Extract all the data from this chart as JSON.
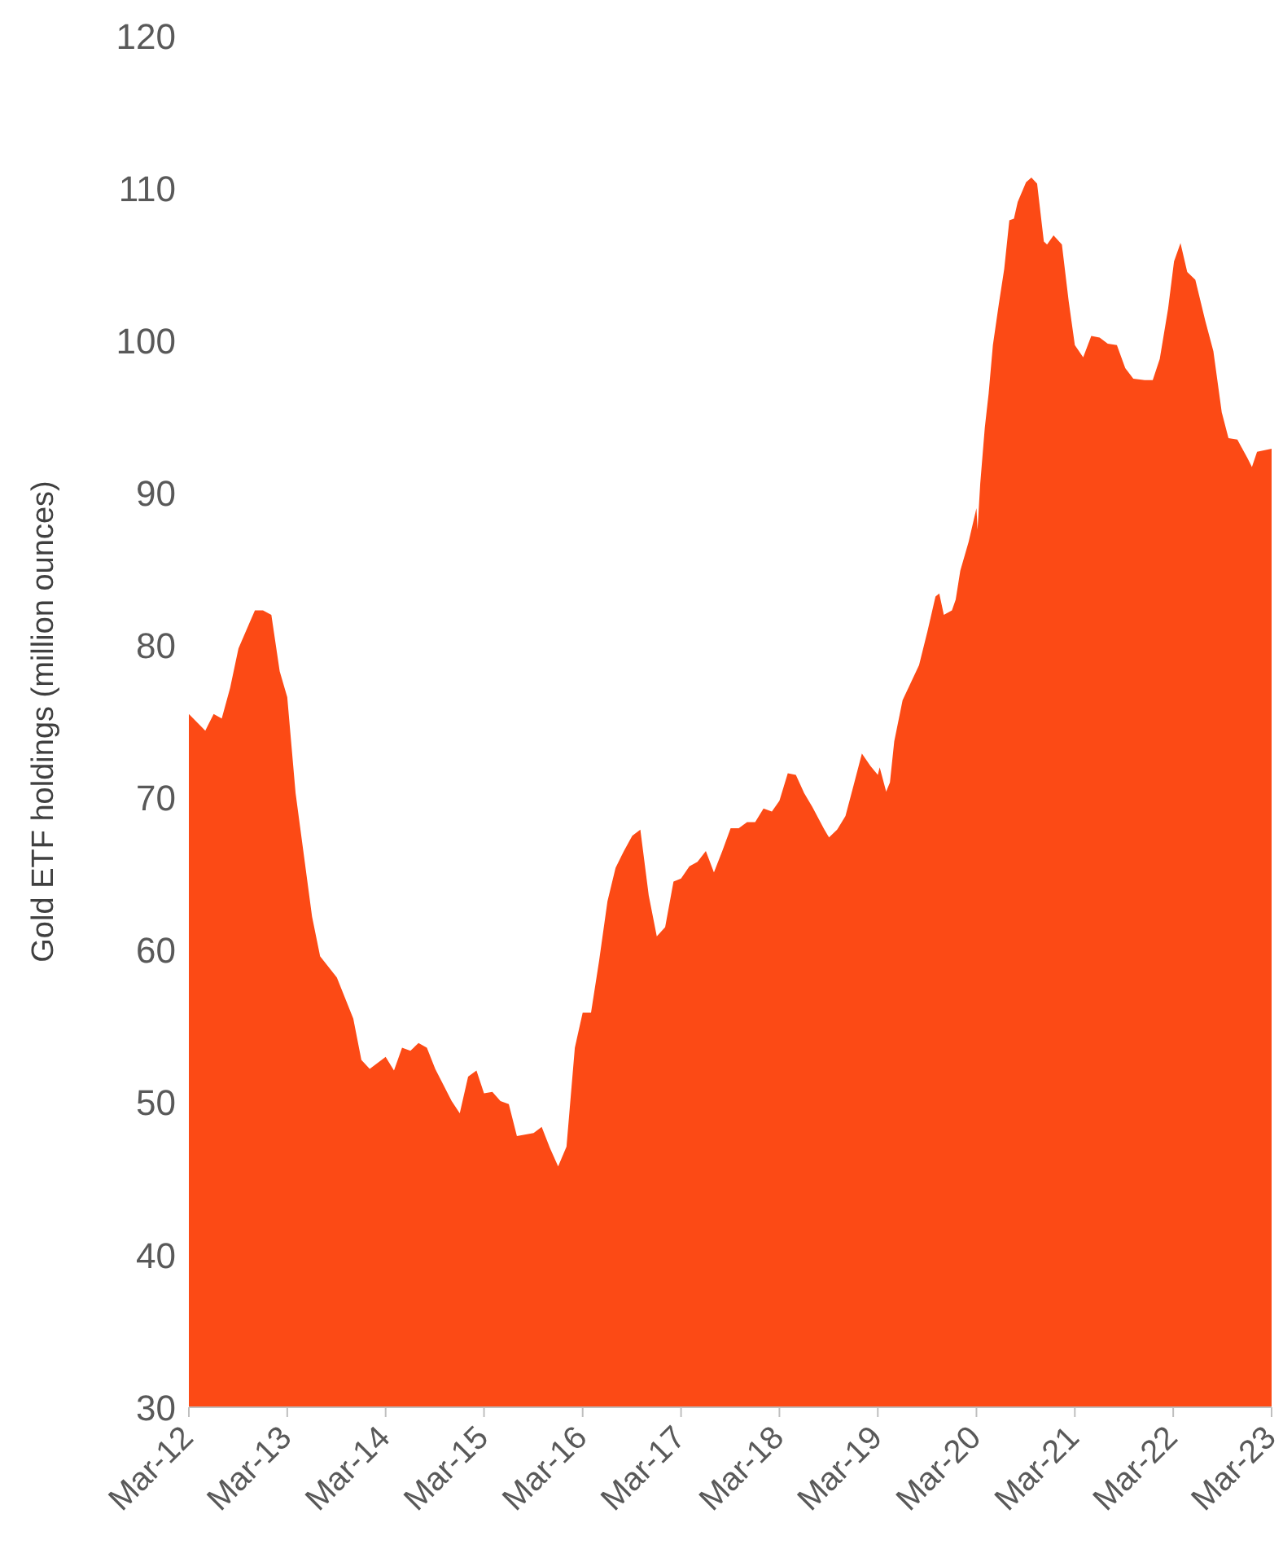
{
  "chart_data": {
    "type": "area",
    "ylabel": "Gold ETF holdings (million ounces)",
    "x": [
      "2012-03-01",
      "2012-05-01",
      "2012-06-01",
      "2012-07-01",
      "2012-08-01",
      "2012-09-01",
      "2012-11-01",
      "2012-12-01",
      "2013-01-01",
      "2013-02-01",
      "2013-03-01",
      "2013-04-01",
      "2013-06-01",
      "2013-07-01",
      "2013-09-01",
      "2013-11-01",
      "2013-12-01",
      "2014-01-01",
      "2014-03-01",
      "2014-04-01",
      "2014-05-01",
      "2014-06-01",
      "2014-07-01",
      "2014-08-01",
      "2014-09-01",
      "2014-11-01",
      "2014-12-01",
      "2015-01-01",
      "2015-02-01",
      "2015-03-01",
      "2015-04-01",
      "2015-05-01",
      "2015-06-01",
      "2015-07-01",
      "2015-09-01",
      "2015-10-01",
      "2015-11-01",
      "2015-12-01",
      "2016-01-01",
      "2016-02-01",
      "2016-03-01",
      "2016-04-01",
      "2016-05-01",
      "2016-06-01",
      "2016-07-01",
      "2016-08-01",
      "2016-09-01",
      "2016-10-01",
      "2016-11-01",
      "2016-12-01",
      "2017-01-01",
      "2017-02-01",
      "2017-03-01",
      "2017-04-01",
      "2017-05-01",
      "2017-06-01",
      "2017-07-01",
      "2017-08-01",
      "2017-09-01",
      "2017-10-01",
      "2017-11-01",
      "2017-12-01",
      "2018-01-01",
      "2018-02-01",
      "2018-03-01",
      "2018-04-01",
      "2018-05-01",
      "2018-06-01",
      "2018-07-01",
      "2018-08-15",
      "2018-09-01",
      "2018-10-01",
      "2018-11-01",
      "2018-12-01",
      "2019-01-01",
      "2019-02-01",
      "2019-03-01",
      "2019-03-08",
      "2019-04-01",
      "2019-04-15",
      "2019-05-01",
      "2019-06-01",
      "2019-08-01",
      "2019-09-01",
      "2019-10-01",
      "2019-10-15",
      "2019-11-01",
      "2019-12-01",
      "2019-12-15",
      "2020-01-01",
      "2020-02-01",
      "2020-03-01",
      "2020-03-05",
      "2020-03-15",
      "2020-04-01",
      "2020-04-15",
      "2020-05-01",
      "2020-05-23",
      "2020-06-12",
      "2020-07-01",
      "2020-07-18",
      "2020-08-01",
      "2020-09-01",
      "2020-09-21",
      "2020-10-12",
      "2020-11-06",
      "2020-11-18",
      "2020-12-12",
      "2021-01-12",
      "2021-02-06",
      "2021-03-01",
      "2021-04-01",
      "2021-05-01",
      "2021-06-01",
      "2021-07-01",
      "2021-08-04",
      "2021-09-04",
      "2021-10-04",
      "2021-11-15",
      "2021-12-15",
      "2022-01-10",
      "2022-02-10",
      "2022-03-04",
      "2022-03-28",
      "2022-04-22",
      "2022-05-22",
      "2022-06-28",
      "2022-07-28",
      "2022-08-28",
      "2022-09-22",
      "2022-10-25",
      "2022-12-01",
      "2022-12-18",
      "2023-01-06",
      "2023-03-01"
    ],
    "series": [
      {
        "color": "#fc4a15",
        "values": [
          75.5,
          74.4,
          75.5,
          75.2,
          77.2,
          79.8,
          82.3,
          82.3,
          82.0,
          78.3,
          76.6,
          70.3,
          62.2,
          59.6,
          58.2,
          55.5,
          52.8,
          52.2,
          53.0,
          52.1,
          53.6,
          53.4,
          53.9,
          53.6,
          52.2,
          50.1,
          49.3,
          51.7,
          52.1,
          50.6,
          50.7,
          50.1,
          49.9,
          47.8,
          48.0,
          48.4,
          47.0,
          45.8,
          47.1,
          53.6,
          55.9,
          55.9,
          59.3,
          63.2,
          65.4,
          66.5,
          67.5,
          67.9,
          63.6,
          60.9,
          61.5,
          64.5,
          64.7,
          65.5,
          65.8,
          66.5,
          65.1,
          66.5,
          68.0,
          68.0,
          68.4,
          68.4,
          69.3,
          69.1,
          69.8,
          71.6,
          71.5,
          70.3,
          69.4,
          67.9,
          67.4,
          67.9,
          68.8,
          70.8,
          72.9,
          72.1,
          71.5,
          72.0,
          70.4,
          71.0,
          73.7,
          76.4,
          78.7,
          80.9,
          83.2,
          83.4,
          82.0,
          82.3,
          83.0,
          84.9,
          86.8,
          89.0,
          87.6,
          90.6,
          94.3,
          96.5,
          99.7,
          102.4,
          104.7,
          107.9,
          108.0,
          109.1,
          110.4,
          110.7,
          110.3,
          106.5,
          106.3,
          106.9,
          106.3,
          102.6,
          99.7,
          98.9,
          100.3,
          100.2,
          99.8,
          99.7,
          98.2,
          97.5,
          97.4,
          97.4,
          98.8,
          102.1,
          105.2,
          106.4,
          104.5,
          104.0,
          101.3,
          99.3,
          95.3,
          93.6,
          93.5,
          92.3,
          91.7,
          92.7,
          92.9
        ]
      }
    ],
    "xlim": [
      "2012-03-01",
      "2023-03-01"
    ],
    "xticks": [
      {
        "value": "2012-03-01",
        "label": "Mar-12"
      },
      {
        "value": "2013-03-01",
        "label": "Mar-13"
      },
      {
        "value": "2014-03-01",
        "label": "Mar-14"
      },
      {
        "value": "2015-03-01",
        "label": "Mar-15"
      },
      {
        "value": "2016-03-01",
        "label": "Mar-16"
      },
      {
        "value": "2017-03-01",
        "label": "Mar-17"
      },
      {
        "value": "2018-03-01",
        "label": "Mar-18"
      },
      {
        "value": "2019-03-01",
        "label": "Mar-19"
      },
      {
        "value": "2020-03-01",
        "label": "Mar-20"
      },
      {
        "value": "2021-03-01",
        "label": "Mar-21"
      },
      {
        "value": "2022-03-01",
        "label": "Mar-22"
      },
      {
        "value": "2023-03-01",
        "label": "Mar-23"
      }
    ],
    "ylim": [
      30,
      120
    ],
    "yticks": [
      30,
      40,
      50,
      60,
      70,
      80,
      90,
      100,
      110,
      120
    ]
  }
}
